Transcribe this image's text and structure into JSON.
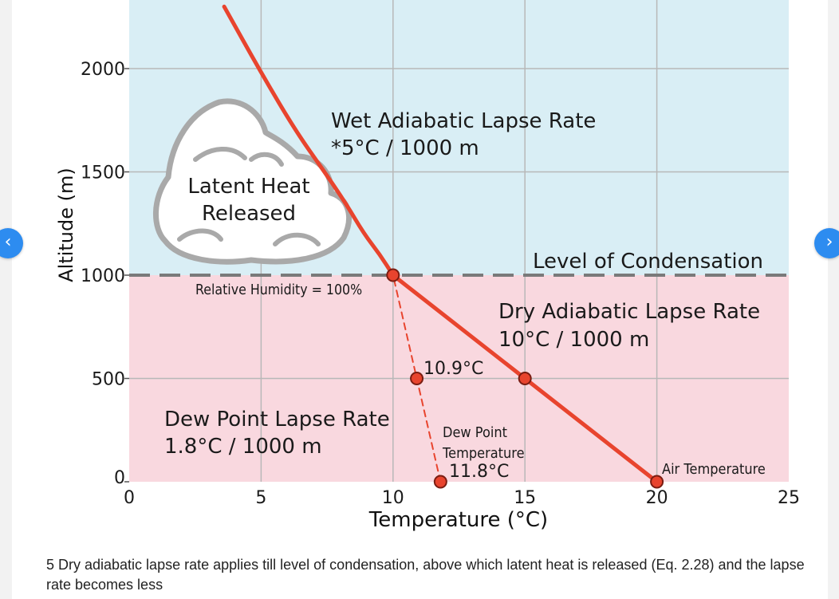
{
  "navigation": {
    "prev_label": "‹",
    "next_label": "›"
  },
  "caption": "5 Dry adiabatic lapse rate applies till level of condensation, above which latent heat is released (Eq. 2.28) and the lapse rate becomes less",
  "colors": {
    "wet_zone": "#d9eef5",
    "dry_zone": "#f9d8df",
    "curve": "#e8442e",
    "grid": "#b8b8b8",
    "cloud": "#a9a9a9",
    "nav_button": "#2d8cf0"
  },
  "chart_data": {
    "type": "line",
    "xlabel": "Temperature (°C)",
    "ylabel": "Altitude (m)",
    "xlim": [
      0,
      25
    ],
    "ylim": [
      0,
      2300
    ],
    "x_ticks": [
      "0",
      "5",
      "10",
      "15",
      "20",
      "25"
    ],
    "y_ticks": [
      "0",
      "500",
      "1000",
      "1500",
      "2000"
    ],
    "grid": true,
    "series": [
      {
        "key": "air",
        "points": [
          [
            20,
            0
          ],
          [
            15,
            500
          ],
          [
            10,
            1000
          ],
          [
            9.5,
            1100
          ],
          [
            8.9,
            1200
          ],
          [
            8.2,
            1350
          ],
          [
            7.4,
            1500
          ],
          [
            6.3,
            1700
          ],
          [
            5.0,
            1980
          ],
          [
            3.6,
            2300
          ]
        ]
      },
      {
        "key": "dew",
        "points": [
          [
            11.8,
            0
          ],
          [
            10.9,
            500
          ],
          [
            10,
            1000
          ]
        ],
        "dashed": true
      }
    ],
    "markers": [
      [
        20,
        0
      ],
      [
        15,
        500
      ],
      [
        10,
        1000
      ],
      [
        10.9,
        500
      ],
      [
        11.8,
        0
      ]
    ],
    "condensation_level": 1000,
    "annotations": {
      "wet_rate_title": "Wet Adiabatic Lapse Rate",
      "wet_rate_value": "*5°C / 1000 m",
      "latent_line1": "Latent Heat",
      "latent_line2": "Released",
      "condensation": "Level of Condensation",
      "humidity": "Relative Humidity = 100%",
      "dry_rate_title": "Dry Adiabatic Lapse Rate",
      "dry_rate_value": "10°C / 1000 m",
      "dew_mid_value": "10.9°C",
      "dew_rate_title": "Dew Point Lapse Rate",
      "dew_rate_value": "1.8°C / 1000 m",
      "dew_label_line1": "Dew Point",
      "dew_label_line2": "Temperature",
      "dew_surface_value": "11.8°C",
      "air_temp": "Air Temperature"
    }
  }
}
